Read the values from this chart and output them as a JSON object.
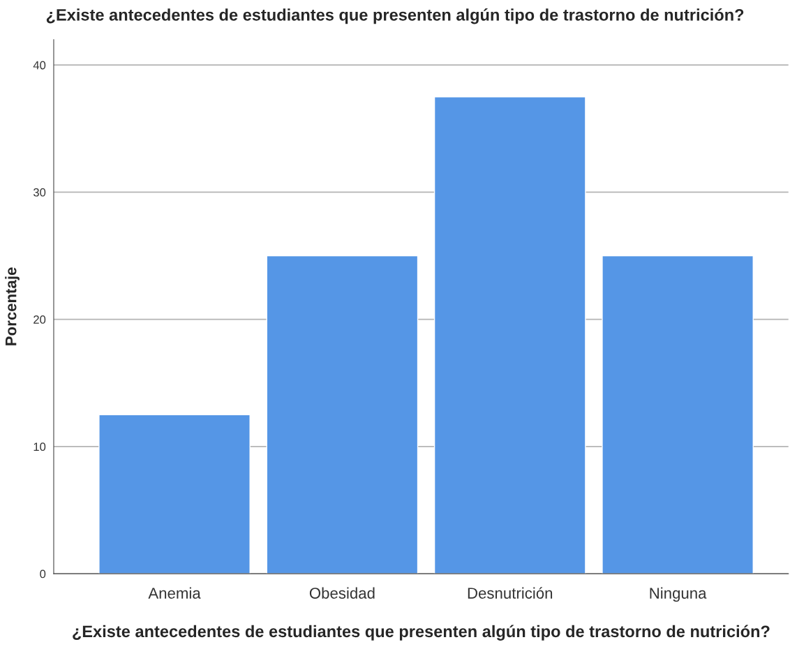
{
  "chart_data": {
    "type": "bar",
    "title": "¿Existe antecedentes de estudiantes que presenten algún tipo de trastorno de nutrición?",
    "xlabel": "¿Existe antecedentes de estudiantes que presenten algún tipo de trastorno de nutrición?",
    "ylabel": "Porcentaje",
    "categories": [
      "Anemia",
      "Obesidad",
      "Desnutrición",
      "Ninguna"
    ],
    "values": [
      12.5,
      25,
      37.5,
      25
    ],
    "color": "#5596e6",
    "ylim": [
      0,
      42
    ],
    "yticks": [
      0,
      10,
      20,
      30,
      40
    ],
    "grid": "y"
  }
}
